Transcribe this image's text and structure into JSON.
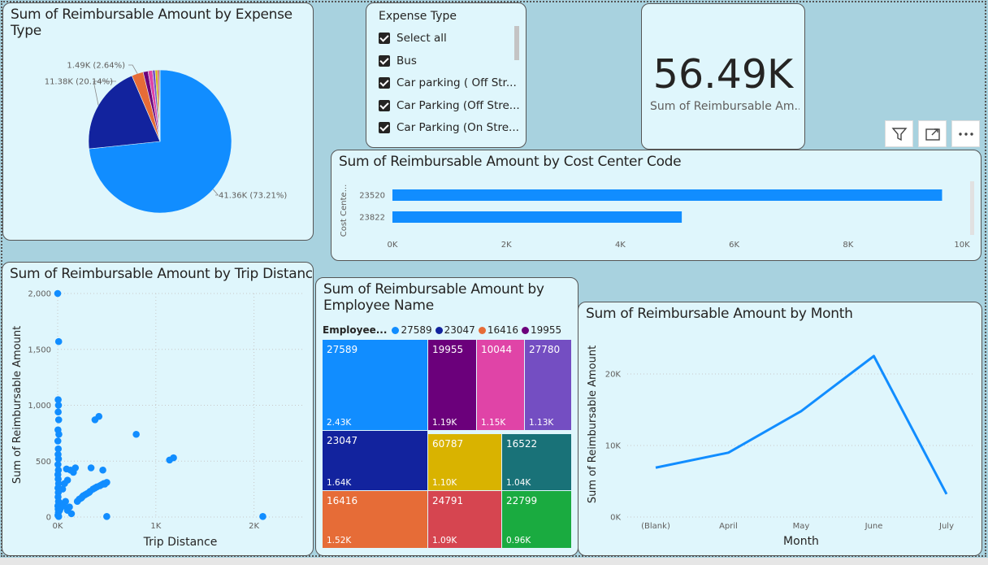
{
  "pie_card": {
    "title": "Sum of Reimbursable Amount by Expense Type",
    "chart_data": {
      "type": "pie",
      "slices": [
        {
          "value": 41.36,
          "percent": 73.21,
          "label": "41.36K (73.21%)",
          "color": "#118dff"
        },
        {
          "value": 11.38,
          "percent": 20.14,
          "label": "11.38K (20.14%)",
          "color": "#12239e"
        },
        {
          "value": 1.49,
          "percent": 2.64,
          "label": "1.49K (2.64%)",
          "color": "#e66c37"
        },
        {
          "value": 0.62,
          "percent": 1.1,
          "label": "",
          "color": "#6b007b"
        },
        {
          "value": 0.57,
          "percent": 1.0,
          "label": "",
          "color": "#e044a7"
        },
        {
          "value": 0.34,
          "percent": 0.6,
          "label": "",
          "color": "#744ec2"
        },
        {
          "value": 0.29,
          "percent": 0.52,
          "label": "",
          "color": "#d9b300"
        },
        {
          "value": 0.22,
          "percent": 0.4,
          "label": "",
          "color": "#d64550"
        },
        {
          "value": 0.11,
          "percent": 0.2,
          "label": "",
          "color": "#197278"
        }
      ]
    }
  },
  "slicer": {
    "title": "Expense Type",
    "items": [
      {
        "label": "Select all",
        "checked": true
      },
      {
        "label": "Bus",
        "checked": true
      },
      {
        "label": "Car parking ( Off Str...",
        "checked": true
      },
      {
        "label": "Car Parking (Off Stre...",
        "checked": true
      },
      {
        "label": "Car Parking (On Stre...",
        "checked": true
      }
    ]
  },
  "kpi": {
    "value": "56.49K",
    "label": "Sum of Reimbursable Am..."
  },
  "header_icons": [
    "filter-icon",
    "focus-mode-icon",
    "more-options-icon"
  ],
  "cost_center": {
    "title": "Sum of Reimbursable Amount by Cost Center Code",
    "chart_data": {
      "type": "bar",
      "orientation": "horizontal",
      "ylabel": "Cost Cente...",
      "categories": [
        "23520",
        "23822"
      ],
      "values": [
        9650,
        5080
      ],
      "xlim": [
        0,
        10000
      ],
      "xticks": [
        "0K",
        "2K",
        "4K",
        "6K",
        "8K",
        "10K"
      ],
      "color": "#118dff"
    }
  },
  "trip": {
    "title": "Sum of Reimbursable Amount by Trip Distance",
    "chart_data": {
      "type": "scatter",
      "xlabel": "Trip Distance",
      "ylabel": "Sum of Reimbursable Amount",
      "xlim": [
        0,
        2500
      ],
      "ylim": [
        0,
        2000
      ],
      "xticks": [
        "0K",
        "1K",
        "2K"
      ],
      "yticks": [
        "0",
        "500",
        "1,000",
        "1,500",
        "2,000"
      ],
      "color": "#118dff",
      "points": [
        [
          0,
          2000
        ],
        [
          10,
          1570
        ],
        [
          5,
          1050
        ],
        [
          8,
          1000
        ],
        [
          5,
          940
        ],
        [
          10,
          870
        ],
        [
          3,
          780
        ],
        [
          12,
          740
        ],
        [
          2,
          680
        ],
        [
          6,
          610
        ],
        [
          4,
          560
        ],
        [
          8,
          520
        ],
        [
          3,
          470
        ],
        [
          7,
          420
        ],
        [
          2,
          380
        ],
        [
          5,
          340
        ],
        [
          9,
          300
        ],
        [
          3,
          260
        ],
        [
          6,
          220
        ],
        [
          4,
          180
        ],
        [
          8,
          140
        ],
        [
          2,
          100
        ],
        [
          5,
          70
        ],
        [
          7,
          40
        ],
        [
          3,
          15
        ],
        [
          10,
          5
        ],
        [
          20,
          60
        ],
        [
          30,
          80
        ],
        [
          40,
          120
        ],
        [
          60,
          100
        ],
        [
          80,
          140
        ],
        [
          100,
          60
        ],
        [
          120,
          90
        ],
        [
          140,
          30
        ],
        [
          50,
          250
        ],
        [
          70,
          300
        ],
        [
          100,
          330
        ],
        [
          90,
          430
        ],
        [
          130,
          420
        ],
        [
          160,
          400
        ],
        [
          180,
          440
        ],
        [
          250,
          180
        ],
        [
          280,
          200
        ],
        [
          300,
          210
        ],
        [
          330,
          230
        ],
        [
          360,
          250
        ],
        [
          400,
          270
        ],
        [
          430,
          280
        ],
        [
          470,
          300
        ],
        [
          500,
          310
        ],
        [
          200,
          140
        ],
        [
          220,
          160
        ],
        [
          240,
          170
        ],
        [
          260,
          190
        ],
        [
          320,
          220
        ],
        [
          380,
          260
        ],
        [
          450,
          290
        ],
        [
          480,
          295
        ],
        [
          340,
          440
        ],
        [
          380,
          870
        ],
        [
          420,
          900
        ],
        [
          460,
          420
        ],
        [
          800,
          740
        ],
        [
          1140,
          510
        ],
        [
          1180,
          530
        ],
        [
          500,
          5
        ],
        [
          2090,
          5
        ]
      ]
    }
  },
  "employee": {
    "title": "Sum of Reimbursable Amount by Employee Name",
    "legend_title": "Employee...",
    "legend_items": [
      {
        "name": "27589",
        "color": "#118dff"
      },
      {
        "name": "23047",
        "color": "#12239e"
      },
      {
        "name": "16416",
        "color": "#e66c37"
      },
      {
        "name": "19955",
        "color": "#6b007b"
      }
    ],
    "chart_data": {
      "type": "treemap",
      "tiles": [
        {
          "name": "27589",
          "value": "2.43K",
          "color": "#118dff"
        },
        {
          "name": "19955",
          "value": "1.19K",
          "color": "#6b007b"
        },
        {
          "name": "10044",
          "value": "1.15K",
          "color": "#e044a7"
        },
        {
          "name": "27780",
          "value": "1.13K",
          "color": "#744ec2"
        },
        {
          "name": "23047",
          "value": "1.64K",
          "color": "#12239e"
        },
        {
          "name": "60787",
          "value": "1.10K",
          "color": "#d9b300"
        },
        {
          "name": "16522",
          "value": "1.04K",
          "color": "#197278"
        },
        {
          "name": "16416",
          "value": "1.52K",
          "color": "#e66c37"
        },
        {
          "name": "24791",
          "value": "1.09K",
          "color": "#d64550"
        },
        {
          "name": "22799",
          "value": "0.96K",
          "color": "#1aab40"
        }
      ]
    }
  },
  "month": {
    "title": "Sum of Reimbursable Amount by Month",
    "chart_data": {
      "type": "line",
      "xlabel": "Month",
      "ylabel": "Sum of Reimbursable Amount",
      "categories": [
        "(Blank)",
        "April",
        "May",
        "June",
        "July"
      ],
      "values": [
        6900,
        9000,
        14800,
        22500,
        3200
      ],
      "ylim": [
        0,
        25000
      ],
      "yticks": [
        "0K",
        "10K",
        "20K"
      ],
      "color": "#118dff"
    }
  }
}
